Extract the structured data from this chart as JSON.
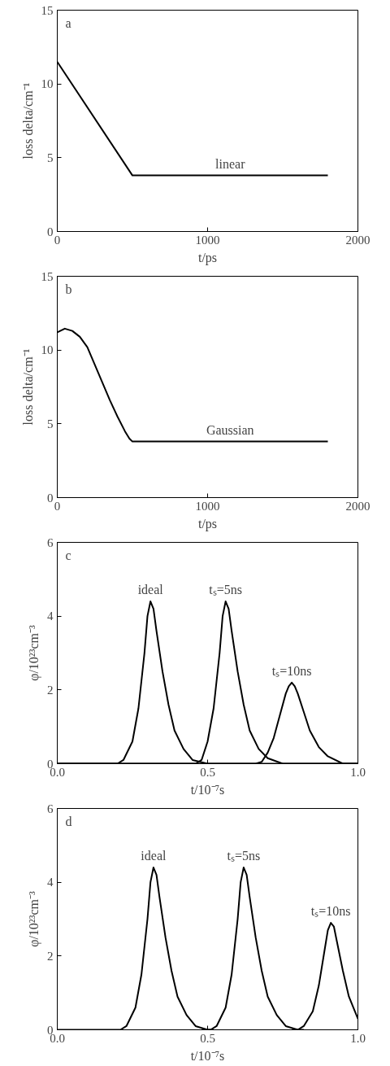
{
  "chart_data": [
    {
      "type": "line",
      "annotations": [
        "a",
        "linear"
      ],
      "xlabel": "t/ps",
      "ylabel": "loss delta/cm⁻¹",
      "xlim": [
        0,
        2000
      ],
      "ylim": [
        0,
        15
      ],
      "xticks": [
        0,
        1000,
        2000
      ],
      "yticks": [
        0,
        5,
        10,
        15
      ],
      "grid": false,
      "series": [
        {
          "color": "#000000",
          "x": [
            0,
            500,
            1800
          ],
          "values": [
            11.5,
            3.8,
            3.8
          ]
        }
      ]
    },
    {
      "type": "line",
      "annotations": [
        "b",
        "Gaussian"
      ],
      "xlabel": "t/ps",
      "ylabel": "loss delta/cm⁻¹",
      "xlim": [
        0,
        2000
      ],
      "ylim": [
        0,
        15
      ],
      "xticks": [
        0,
        1000,
        2000
      ],
      "yticks": [
        0,
        5,
        10,
        15
      ],
      "grid": false,
      "series": [
        {
          "color": "#000000",
          "x": [
            0,
            50,
            100,
            150,
            200,
            250,
            300,
            350,
            400,
            450,
            480,
            500,
            1800
          ],
          "values": [
            11.2,
            11.45,
            11.3,
            10.9,
            10.2,
            9.0,
            7.8,
            6.6,
            5.5,
            4.5,
            4.0,
            3.8,
            3.8
          ]
        }
      ]
    },
    {
      "type": "line",
      "annotations": [
        "c",
        "ideal",
        "tₛ=5ns",
        "tₛ=10ns"
      ],
      "xlabel": "t/10⁻⁷s",
      "ylabel": "φ/10²³cm⁻³",
      "xlim": [
        0,
        1
      ],
      "ylim": [
        0,
        6
      ],
      "xticks": [
        {
          "value": 0,
          "label": "0.0"
        },
        {
          "value": 0.5,
          "label": "0.5"
        },
        {
          "value": 1,
          "label": "1.0"
        }
      ],
      "yticks": [
        0,
        2,
        4,
        6
      ],
      "grid": false,
      "series": [
        {
          "color": "#000000",
          "x": [
            0,
            0.2,
            0.22,
            0.25,
            0.27,
            0.29,
            0.3,
            0.31,
            0.32,
            0.33,
            0.35,
            0.37,
            0.39,
            0.42,
            0.45,
            0.5,
            1
          ],
          "values": [
            0,
            0,
            0.1,
            0.6,
            1.5,
            3.0,
            4.0,
            4.4,
            4.2,
            3.6,
            2.5,
            1.6,
            0.9,
            0.4,
            0.1,
            0,
            0
          ]
        },
        {
          "color": "#000000",
          "x": [
            0,
            0.46,
            0.48,
            0.5,
            0.52,
            0.54,
            0.55,
            0.56,
            0.57,
            0.58,
            0.6,
            0.62,
            0.64,
            0.67,
            0.7,
            0.75,
            1
          ],
          "values": [
            0,
            0,
            0.1,
            0.6,
            1.5,
            3.0,
            4.0,
            4.4,
            4.2,
            3.6,
            2.5,
            1.6,
            0.9,
            0.4,
            0.15,
            0,
            0
          ]
        },
        {
          "color": "#000000",
          "x": [
            0,
            0.66,
            0.68,
            0.7,
            0.72,
            0.74,
            0.76,
            0.77,
            0.78,
            0.79,
            0.8,
            0.82,
            0.84,
            0.87,
            0.9,
            0.95,
            1
          ],
          "values": [
            0,
            0,
            0.05,
            0.3,
            0.7,
            1.3,
            1.9,
            2.1,
            2.2,
            2.1,
            1.9,
            1.4,
            0.9,
            0.45,
            0.2,
            0,
            0
          ]
        }
      ]
    },
    {
      "type": "line",
      "annotations": [
        "d",
        "ideal",
        "tₛ=5ns",
        "tₛ=10ns"
      ],
      "xlabel": "t/10⁻⁷s",
      "ylabel": "φ/10²³cm⁻³",
      "xlim": [
        0,
        1
      ],
      "ylim": [
        0,
        6
      ],
      "xticks": [
        {
          "value": 0,
          "label": "0.0"
        },
        {
          "value": 0.5,
          "label": "0.5"
        },
        {
          "value": 1,
          "label": "1.0"
        }
      ],
      "yticks": [
        0,
        2,
        4,
        6
      ],
      "grid": false,
      "series": [
        {
          "color": "#000000",
          "x": [
            0,
            0.21,
            0.23,
            0.26,
            0.28,
            0.3,
            0.31,
            0.32,
            0.33,
            0.34,
            0.36,
            0.38,
            0.4,
            0.43,
            0.46,
            0.5,
            0.52
          ],
          "values": [
            0,
            0,
            0.1,
            0.6,
            1.5,
            3.0,
            4.0,
            4.4,
            4.2,
            3.6,
            2.5,
            1.6,
            0.9,
            0.4,
            0.1,
            0,
            0
          ]
        },
        {
          "color": "#000000",
          "x": [
            0.48,
            0.51,
            0.53,
            0.56,
            0.58,
            0.6,
            0.61,
            0.62,
            0.63,
            0.64,
            0.66,
            0.68,
            0.7,
            0.73,
            0.76,
            0.8,
            0.82
          ],
          "values": [
            0,
            0,
            0.1,
            0.6,
            1.5,
            3.0,
            4.0,
            4.4,
            4.2,
            3.6,
            2.5,
            1.6,
            0.9,
            0.4,
            0.1,
            0,
            0
          ]
        },
        {
          "color": "#000000",
          "x": [
            0.78,
            0.8,
            0.82,
            0.85,
            0.87,
            0.89,
            0.9,
            0.91,
            0.92,
            0.93,
            0.95,
            0.97,
            1.0
          ],
          "values": [
            0,
            0,
            0.1,
            0.5,
            1.2,
            2.2,
            2.7,
            2.9,
            2.8,
            2.4,
            1.6,
            0.9,
            0.3
          ]
        }
      ]
    }
  ]
}
